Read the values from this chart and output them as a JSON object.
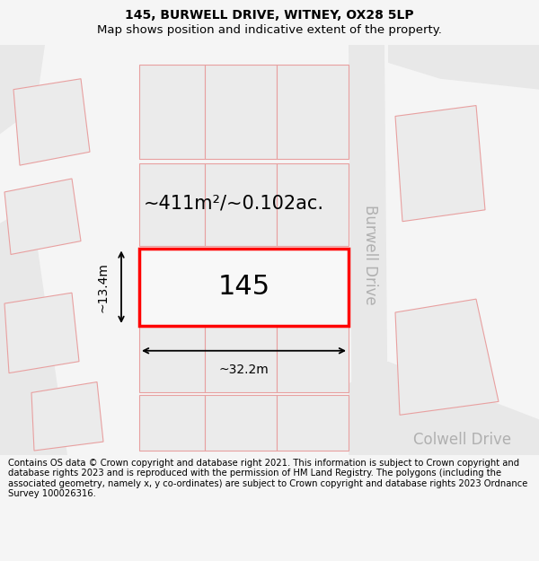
{
  "title": "145, BURWELL DRIVE, WITNEY, OX28 5LP",
  "subtitle": "Map shows position and indicative extent of the property.",
  "footer": "Contains OS data © Crown copyright and database right 2021. This information is subject to Crown copyright and database rights 2023 and is reproduced with the permission of HM Land Registry. The polygons (including the associated geometry, namely x, y co-ordinates) are subject to Crown copyright and database rights 2023 Ordnance Survey 100026316.",
  "bg_color": "#f5f5f5",
  "map_bg": "#ffffff",
  "road_fill": "#e8e8e8",
  "road_edge": "#cccccc",
  "plot_fill": "#ebebeb",
  "plot_stroke": "#e8a0a0",
  "highlight_fill": "#f8f8f8",
  "highlight_stroke": "#ff0000",
  "area_label": "~411m²/~0.102ac.",
  "house_number": "145",
  "width_label": "~32.2m",
  "height_label": "~13.4m",
  "road_label_1": "Burwell Drive",
  "road_label_2": "Colwell Drive",
  "title_fontsize": 10,
  "subtitle_fontsize": 9.5,
  "footer_fontsize": 7.2,
  "area_fontsize": 15,
  "number_fontsize": 22,
  "dim_fontsize": 10,
  "road_label_fontsize": 12
}
